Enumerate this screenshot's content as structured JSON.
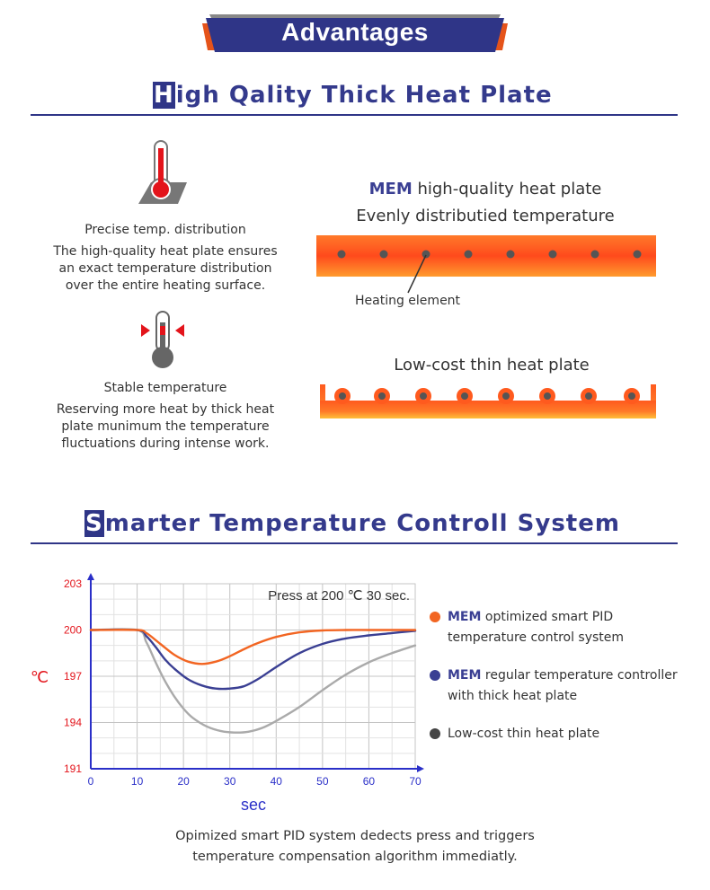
{
  "banner": {
    "title": "Advantages"
  },
  "section1": {
    "title_initial": "H",
    "title_rest": "igh Qality Thick Heat Plate",
    "feature1": {
      "title": "Precise temp. distribution",
      "lines": [
        "The high-quality heat plate ensures",
        "an exact temperature distribution",
        "over the entire heating surface."
      ]
    },
    "feature2": {
      "title": "Stable temperature",
      "lines": [
        "Reserving more heat by thick heat",
        "plate munimum the temperature",
        "fluctuations during intense work."
      ]
    },
    "thick_plate": {
      "brand": "MEM",
      "caption1": "high-quality heat plate",
      "caption2": "Evenly distributied temperature",
      "element_label": "Heating element"
    },
    "thin_plate": {
      "caption": "Low-cost thin heat plate"
    }
  },
  "section2": {
    "title_initial": "S",
    "title_rest": "marter Temperature Controll System",
    "legend": [
      {
        "brand": "MEM",
        "text1": "optimized smart PID",
        "text2": "temperature control system",
        "color": "#f26522"
      },
      {
        "brand": "MEM",
        "text1": "regular temperature controller",
        "text2": "with thick heat plate",
        "color": "#3a3f93"
      },
      {
        "brand": "",
        "text1": "Low-cost thin heat plate",
        "text2": "",
        "color": "#444444"
      }
    ],
    "footer_lines": [
      "Opimized smart PID system dedects press and triggers",
      "temperature compensation algorithm immediatly."
    ]
  },
  "colors": {
    "navy": "#2f3587",
    "orange": "#f26522",
    "gray": "#aaaaaa"
  },
  "chart_data": {
    "type": "line",
    "title": "Press at 200 ℃ 30 sec.",
    "xlabel": "sec",
    "ylabel": "℃",
    "xlim": [
      0,
      70
    ],
    "ylim": [
      191,
      203
    ],
    "xticks": [
      0,
      10,
      20,
      30,
      40,
      50,
      60,
      70
    ],
    "yticks": [
      191,
      194,
      197,
      200,
      203
    ],
    "grid": true,
    "series": [
      {
        "name": "MEM optimized smart PID temperature control system",
        "color": "#f26522",
        "x": [
          0,
          10,
          12,
          15,
          18,
          21,
          24,
          27,
          30,
          33,
          36,
          40,
          45,
          50,
          55,
          60,
          65,
          70
        ],
        "y": [
          200,
          200,
          199.8,
          199.1,
          198.4,
          197.95,
          197.8,
          197.95,
          198.3,
          198.75,
          199.15,
          199.55,
          199.85,
          199.97,
          200,
          200,
          200,
          200
        ]
      },
      {
        "name": "MEM regular temperature controller with thick heat plate",
        "color": "#3a3f93",
        "x": [
          0,
          10,
          12,
          14,
          16,
          18,
          21,
          24,
          27,
          30,
          33,
          36,
          40,
          45,
          50,
          55,
          60,
          65,
          70
        ],
        "y": [
          200,
          200,
          199.6,
          198.9,
          198.1,
          197.5,
          196.8,
          196.4,
          196.2,
          196.2,
          196.35,
          196.8,
          197.6,
          198.5,
          199.1,
          199.45,
          199.65,
          199.8,
          199.95
        ]
      },
      {
        "name": "Low-cost thin heat plate",
        "color": "#aaaaaa",
        "x": [
          0,
          10,
          12,
          14,
          16,
          18,
          20,
          22,
          25,
          28,
          31,
          34,
          37,
          40,
          45,
          50,
          55,
          60,
          65,
          70
        ],
        "y": [
          200,
          200,
          199.2,
          197.9,
          196.7,
          195.7,
          194.9,
          194.3,
          193.75,
          193.45,
          193.35,
          193.4,
          193.65,
          194.1,
          195.0,
          196.1,
          197.1,
          197.9,
          198.5,
          199.0
        ]
      }
    ]
  }
}
